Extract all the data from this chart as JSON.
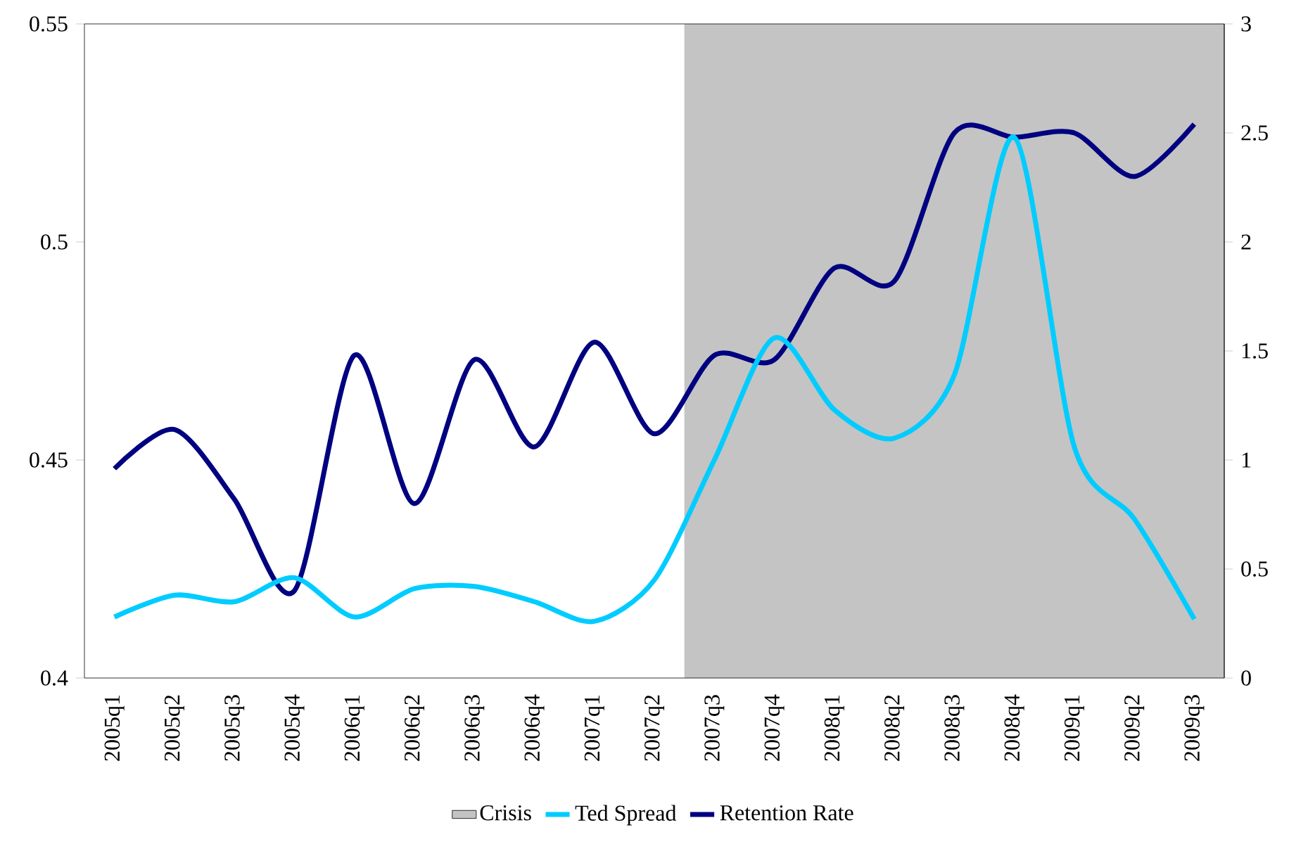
{
  "chart_data": {
    "type": "line",
    "categories": [
      "2005q1",
      "2005q2",
      "2005q3",
      "2005q4",
      "2006q1",
      "2006q2",
      "2006q3",
      "2006q4",
      "2007q1",
      "2007q2",
      "2007q3",
      "2007q4",
      "2008q1",
      "2008q2",
      "2008q3",
      "2008q4",
      "2009q1",
      "2009q2",
      "2009q3"
    ],
    "series": [
      {
        "name": "Ted Spread",
        "color": "#00ccff",
        "axis": "y2",
        "values": [
          0.28,
          0.38,
          0.35,
          0.46,
          0.28,
          0.41,
          0.42,
          0.35,
          0.26,
          0.45,
          1.0,
          1.56,
          1.23,
          1.1,
          1.39,
          2.48,
          1.06,
          0.73,
          0.27
        ]
      },
      {
        "name": "Retention Rate",
        "color": "#000080",
        "values": [
          0.448,
          0.457,
          0.441,
          0.42,
          0.474,
          0.44,
          0.473,
          0.453,
          0.477,
          0.456,
          0.474,
          0.473,
          0.494,
          0.491,
          0.525,
          0.524,
          0.525,
          0.515,
          0.527
        ]
      }
    ],
    "bands": [
      {
        "axis": "x",
        "from": "2007q3",
        "to": "2009q3",
        "label": "Crisis",
        "color": "#c4c4c4"
      }
    ],
    "ylim": [
      0.4,
      0.55
    ],
    "yticks": [
      0.4,
      0.45,
      0.5,
      0.55
    ],
    "y2lim": [
      0,
      3
    ],
    "y2ticks": [
      0,
      0.5,
      1,
      1.5,
      2,
      2.5,
      3
    ],
    "legend": "bottom",
    "grid": false
  }
}
